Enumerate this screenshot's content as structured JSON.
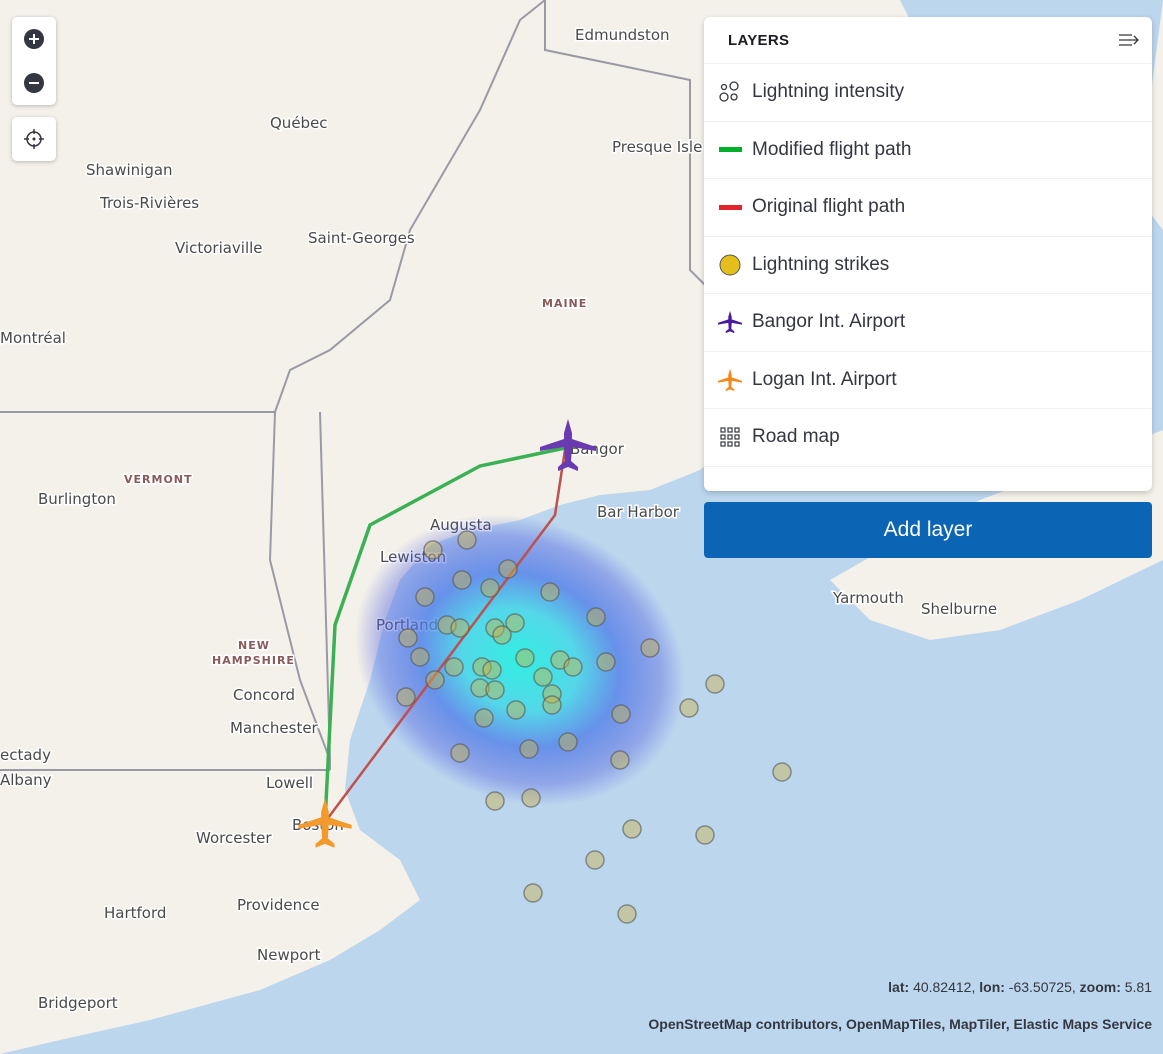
{
  "map": {
    "labels": [
      "Edmundston",
      "Québec",
      "Presque Isle",
      "Shawinigan",
      "Trois-Rivières",
      "Victoriaville",
      "Saint-Georges",
      "Montréal",
      "MAINE",
      "Bangor",
      "VERMONT",
      "Burlington",
      "Augusta",
      "Lewiston",
      "Bar Harbor",
      "Portland",
      "Yarmouth",
      "Shelburne",
      "NEW",
      "HAMPSHIRE",
      "Concord",
      "Manchester",
      "Lowell",
      "Boston",
      "Worcester",
      "ectady",
      "Albany",
      "Hartford",
      "Providence",
      "Newport",
      "Bridgeport"
    ],
    "colors": {
      "land": "#f4f1ea",
      "water": "#bcd6ee",
      "modified_path": "#3cb054",
      "original_path": "#c0504d",
      "bangor": "#6a3bb0",
      "logan": "#f39a2e",
      "strike": "#c9b44a"
    }
  },
  "controls": {
    "zoom_in": "zoom-in",
    "zoom_out": "zoom-out",
    "locate": "crosshair"
  },
  "layers": {
    "title": "LAYERS",
    "items": [
      {
        "label": "Lightning intensity",
        "icon": "heatmap-circles-icon"
      },
      {
        "label": "Modified flight path",
        "icon": "line-icon",
        "color": "#00b02a"
      },
      {
        "label": "Original flight path",
        "icon": "line-icon",
        "color": "#e0262b"
      },
      {
        "label": "Lightning strikes",
        "icon": "circle-icon",
        "color": "#e4bf1c"
      },
      {
        "label": "Bangor Int. Airport",
        "icon": "airplane-icon",
        "color": "#4a1a9c"
      },
      {
        "label": "Logan Int. Airport",
        "icon": "airplane-icon",
        "color": "#f3891a"
      },
      {
        "label": "Road map",
        "icon": "grid-icon"
      }
    ],
    "add_label": "Add layer"
  },
  "status": {
    "lat_label": "lat:",
    "lat": "40.82412",
    "lon_label": "lon:",
    "lon": "-63.50725",
    "zoom_label": "zoom:",
    "zoom": "5.81"
  },
  "attribution": "OpenStreetMap contributors, OpenMapTiles, MapTiler, Elastic Maps Service"
}
